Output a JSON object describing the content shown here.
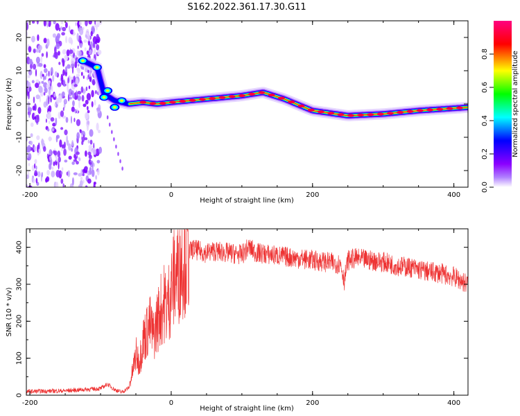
{
  "figure": {
    "title": "S162.2022.361.17.30.G11"
  },
  "chart_data": [
    {
      "type": "heatmap",
      "xlabel": "Height of straight line (km)",
      "ylabel": "Frequency (Hz)",
      "xlim": [
        -205,
        420
      ],
      "ylim": [
        -25,
        25
      ],
      "xticks": [
        -200,
        0,
        200,
        400
      ],
      "yticks": [
        -20,
        -10,
        0,
        10,
        20
      ],
      "grid": false,
      "colorbar": {
        "label": "Normalized spectral amplitude",
        "range": [
          0,
          1
        ],
        "ticks": [
          0.0,
          0.2,
          0.4,
          0.6,
          0.8
        ],
        "colormap": [
          "#ffffff",
          "#8b00ff",
          "#0000ff",
          "#00ffff",
          "#00ff00",
          "#ffff00",
          "#ff0000",
          "#ff0080"
        ]
      },
      "ridge": [
        {
          "x": -125,
          "y": 13
        },
        {
          "x": -105,
          "y": 11
        },
        {
          "x": -95,
          "y": 3
        },
        {
          "x": -80,
          "y": 1
        },
        {
          "x": -60,
          "y": 0
        },
        {
          "x": -40,
          "y": 0.5
        },
        {
          "x": -20,
          "y": 0
        },
        {
          "x": 0,
          "y": 0.5
        },
        {
          "x": 50,
          "y": 1.5
        },
        {
          "x": 100,
          "y": 2.5
        },
        {
          "x": 130,
          "y": 3.5
        },
        {
          "x": 160,
          "y": 1.5
        },
        {
          "x": 200,
          "y": -2
        },
        {
          "x": 250,
          "y": -3.5
        },
        {
          "x": 300,
          "y": -3
        },
        {
          "x": 350,
          "y": -2
        },
        {
          "x": 420,
          "y": -1
        }
      ],
      "noise_region": [
        -205,
        -100
      ]
    },
    {
      "type": "line",
      "xlabel": "Height of straight line (km)",
      "ylabel": "SNR (10 * v/v)",
      "xlim": [
        -205,
        420
      ],
      "ylim": [
        0,
        450
      ],
      "xticks": [
        -200,
        0,
        200,
        400
      ],
      "yticks": [
        0,
        100,
        200,
        300,
        400
      ],
      "grid": false,
      "series": [
        {
          "color": "#ee3333",
          "x": [
            -205,
            -150,
            -100,
            -90,
            -80,
            -70,
            -60,
            -55,
            -50,
            -45,
            -40,
            -35,
            -30,
            -25,
            -20,
            -15,
            -10,
            -5,
            0,
            5,
            10,
            15,
            20,
            25,
            30,
            40,
            50,
            60,
            80,
            100,
            110,
            120,
            140,
            160,
            180,
            200,
            220,
            240,
            245,
            250,
            260,
            280,
            300,
            320,
            340,
            360,
            380,
            400,
            410,
            420
          ],
          "y": [
            10,
            12,
            18,
            30,
            15,
            8,
            20,
            60,
            110,
            90,
            150,
            170,
            190,
            160,
            200,
            230,
            250,
            240,
            290,
            320,
            340,
            370,
            380,
            385,
            395,
            390,
            385,
            390,
            385,
            380,
            400,
            385,
            380,
            375,
            370,
            365,
            360,
            355,
            310,
            365,
            370,
            365,
            360,
            350,
            345,
            335,
            330,
            320,
            310,
            300
          ]
        }
      ]
    }
  ]
}
